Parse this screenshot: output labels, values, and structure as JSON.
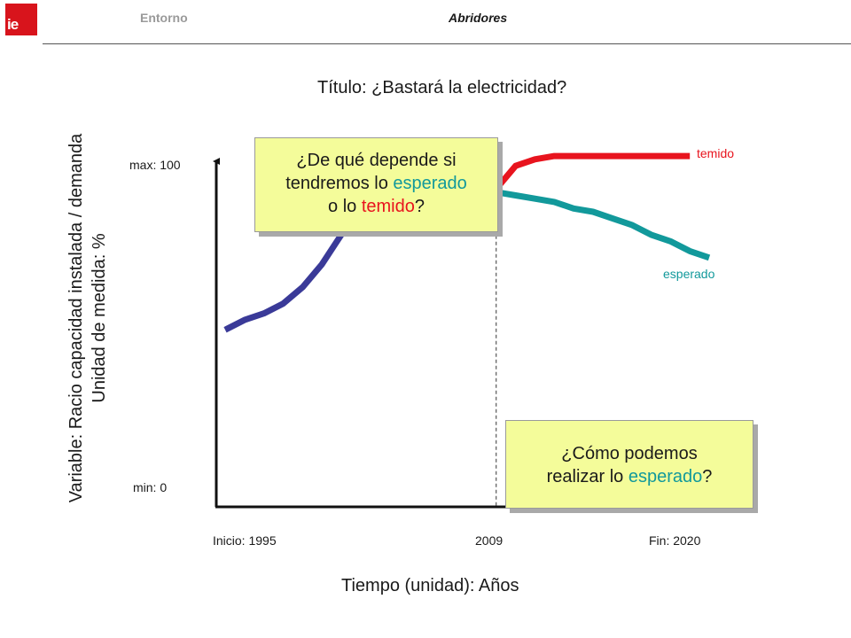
{
  "header": {
    "logo_text": "ie",
    "nav_left": "Entorno",
    "nav_right": "Abridores"
  },
  "colors": {
    "history": "#3a3a98",
    "temido": "#e8141e",
    "esperado": "#12999b",
    "callout_bg": "#f4fc9a",
    "logo": "#d8141c"
  },
  "chart_data": {
    "type": "line",
    "title": "Título: ¿Bastará la electricidad?",
    "ylabel_line1": "Variable: Racio capacidad instalada / demanda",
    "ylabel_line2": "Unidad de medida: %",
    "xlabel": "Tiempo (unidad): Años",
    "y_max_label": "max: 100",
    "y_min_label": "min: 0",
    "x_start_label": "Inicio: 1995",
    "x_mid_label": "2009",
    "x_end_label": "Fin: 2020",
    "xlim": [
      1995,
      2020
    ],
    "ylim": [
      0,
      100
    ],
    "grid": false,
    "marker_year": 2009,
    "series": [
      {
        "name": "",
        "color_key": "history",
        "x": [
          1995,
          1996,
          1997,
          1998,
          1999,
          2000,
          2001,
          2002,
          2003,
          2004,
          2005,
          2006,
          2007,
          2008,
          2009
        ],
        "y": [
          54,
          57,
          59,
          62,
          67,
          74,
          83,
          89,
          94,
          96,
          97,
          98,
          97,
          97,
          97
        ]
      },
      {
        "name": "temido",
        "color_key": "temido",
        "x": [
          2009,
          2010,
          2011,
          2012,
          2013,
          2014,
          2015,
          2016,
          2017,
          2018,
          2019
        ],
        "y": [
          97,
          104,
          106,
          107,
          107,
          107,
          107,
          107,
          107,
          107,
          107
        ]
      },
      {
        "name": "esperado",
        "color_key": "esperado",
        "x": [
          2009,
          2010,
          2011,
          2012,
          2013,
          2014,
          2015,
          2016,
          2017,
          2018,
          2019,
          2020
        ],
        "y": [
          96,
          95,
          94,
          93,
          91,
          90,
          88,
          86,
          83,
          81,
          78,
          76
        ]
      }
    ]
  },
  "callouts": {
    "top": {
      "line1": "¿De qué depende si",
      "line2_pre": "tendremos lo ",
      "line2_accent": "esperado",
      "line3_pre": "o lo ",
      "line3_accent": "temido",
      "line3_post": "?"
    },
    "bottom": {
      "line1": "¿Cómo podemos",
      "line2_pre": "realizar lo ",
      "line2_accent": "esperado",
      "line2_post": "?"
    }
  }
}
